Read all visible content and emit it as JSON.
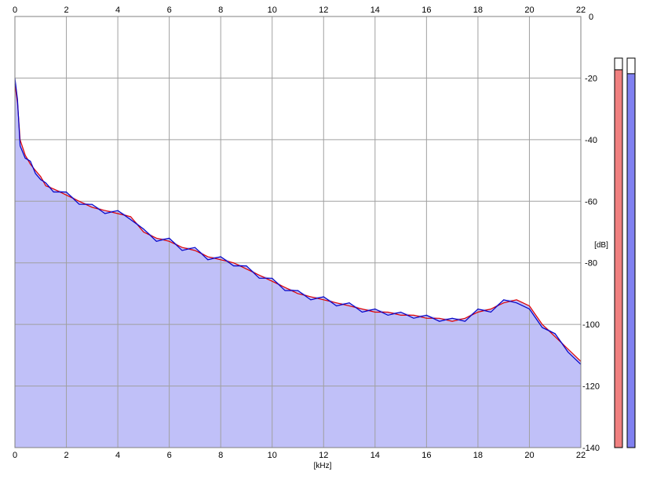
{
  "chart_data": {
    "type": "line",
    "title": "",
    "xlabel": "[kHz]",
    "ylabel": "[dB]",
    "xlim": [
      0,
      22
    ],
    "ylim": [
      -140,
      0
    ],
    "x_ticks": [
      0,
      2,
      4,
      6,
      8,
      10,
      12,
      14,
      16,
      18,
      20,
      22
    ],
    "x_tick_labels": [
      "0",
      "2",
      "4",
      "6",
      "8",
      "10",
      "12",
      "14",
      "16",
      "18",
      "20",
      "22"
    ],
    "y_ticks": [
      0,
      -20,
      -40,
      -60,
      -80,
      -100,
      -120,
      -140
    ],
    "y_tick_labels": [
      "0",
      "-20",
      "-40",
      "-60",
      "-80",
      "-100",
      "-120",
      "-140"
    ],
    "grid": true,
    "fill_color": "#c0c0f8",
    "series": [
      {
        "color": "#e00000",
        "x": [
          0,
          0.1,
          0.2,
          0.4,
          0.6,
          0.8,
          1.0,
          1.2,
          1.5,
          2.0,
          2.5,
          3.0,
          3.5,
          4.0,
          4.5,
          5.0,
          5.5,
          6.0,
          6.5,
          7.0,
          7.5,
          8.0,
          8.5,
          9.0,
          9.5,
          10.0,
          10.5,
          11.0,
          11.5,
          12.0,
          12.5,
          13.0,
          13.5,
          14.0,
          14.5,
          15.0,
          15.5,
          16.0,
          16.5,
          17.0,
          17.5,
          18.0,
          18.5,
          19.0,
          19.5,
          20.0,
          20.5,
          21.0,
          21.5,
          22.0
        ],
        "values": [
          -22,
          -28,
          -40,
          -45,
          -48,
          -50,
          -52,
          -55,
          -56,
          -58,
          -60,
          -62,
          -63,
          -64,
          -65,
          -70,
          -72,
          -73,
          -75,
          -76,
          -78,
          -79,
          -80,
          -82,
          -84,
          -86,
          -88,
          -90,
          -91,
          -92,
          -93,
          -94,
          -95,
          -96,
          -96,
          -97,
          -97,
          -98,
          -98,
          -99,
          -98,
          -96,
          -95,
          -93,
          -92,
          -94,
          -100,
          -104,
          -108,
          -112
        ]
      },
      {
        "color": "#0000c8",
        "x": [
          0,
          0.1,
          0.2,
          0.4,
          0.6,
          0.8,
          1.0,
          1.2,
          1.5,
          2.0,
          2.5,
          3.0,
          3.5,
          4.0,
          4.5,
          5.0,
          5.5,
          6.0,
          6.5,
          7.0,
          7.5,
          8.0,
          8.5,
          9.0,
          9.5,
          10.0,
          10.5,
          11.0,
          11.5,
          12.0,
          12.5,
          13.0,
          13.5,
          14.0,
          14.5,
          15.0,
          15.5,
          16.0,
          16.5,
          17.0,
          17.5,
          18.0,
          18.5,
          19.0,
          19.5,
          20.0,
          20.5,
          21.0,
          21.5,
          22.0
        ],
        "values": [
          -20,
          -27,
          -42,
          -46,
          -47,
          -51,
          -53,
          -54,
          -57,
          -57,
          -61,
          -61,
          -64,
          -63,
          -66,
          -69,
          -73,
          -72,
          -76,
          -75,
          -79,
          -78,
          -81,
          -81,
          -85,
          -85,
          -89,
          -89,
          -92,
          -91,
          -94,
          -93,
          -96,
          -95,
          -97,
          -96,
          -98,
          -97,
          -99,
          -98,
          -99,
          -95,
          -96,
          -92,
          -93,
          -95,
          -101,
          -103,
          -109,
          -113
        ]
      }
    ],
    "level_meters": [
      {
        "color": "#f08080",
        "fraction": 0.97
      },
      {
        "color": "#8080f0",
        "fraction": 0.96
      }
    ]
  }
}
